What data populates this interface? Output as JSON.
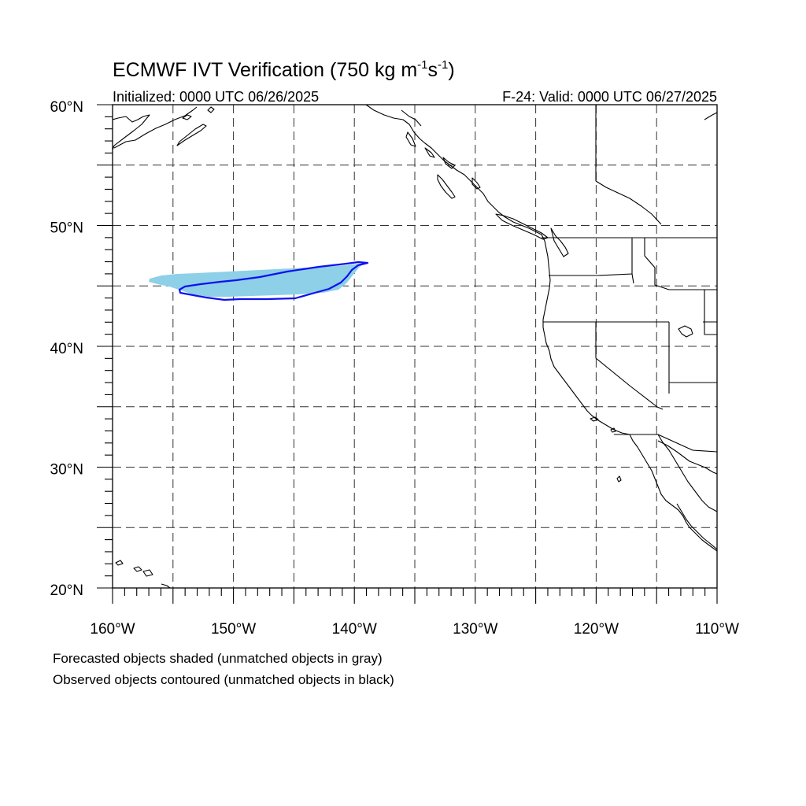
{
  "title": {
    "main": "ECMWF IVT Verification (750 kg m",
    "exp1": "-1",
    "mid": "s",
    "exp2": "-1",
    "close": ")"
  },
  "initialized": "Initialized: 0000 UTC 06/26/2025",
  "valid": "F-24: Valid: 0000 UTC 06/27/2025",
  "map": {
    "lon_range": [
      -160,
      -110
    ],
    "lat_range": [
      20,
      60
    ],
    "grid_interval_deg": 5,
    "grid": "dashed",
    "lat_labels": [
      "60°N",
      "50°N",
      "40°N",
      "30°N",
      "20°N"
    ],
    "lon_labels": [
      "160°W",
      "150°W",
      "140°W",
      "130°W",
      "120°W",
      "110°W"
    ],
    "colors": {
      "forecast_fill": "#8dd0e7",
      "observed_contour": "#1010ee",
      "coast": "#000000"
    }
  },
  "footnotes": [
    "Forecasted objects shaded (unmatched objects in gray)",
    "Observed objects contoured (unmatched objects in black)"
  ]
}
